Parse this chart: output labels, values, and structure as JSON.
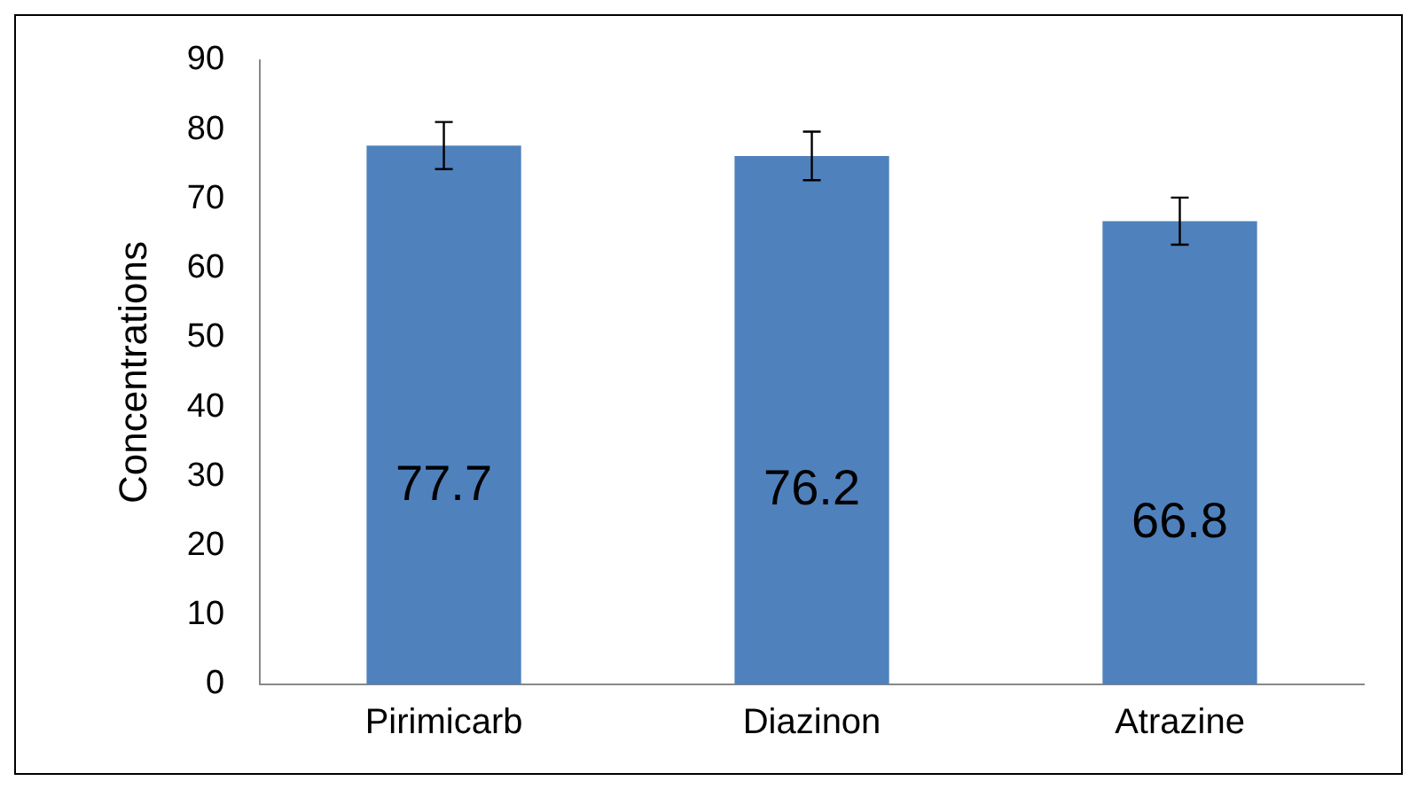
{
  "chart_data": {
    "type": "bar",
    "ylabel": "Concentrations",
    "categories": [
      "Pirimicarb",
      "Diazinon",
      "Atrazine"
    ],
    "values": [
      77.7,
      76.2,
      66.8
    ],
    "color": "#4f81bd",
    "errors": [
      3.4,
      3.5,
      3.4
    ],
    "ylim": [
      0,
      90
    ],
    "yticks": [
      0,
      10,
      20,
      30,
      40,
      50,
      60,
      70,
      80,
      90
    ],
    "grid": false,
    "legend": false,
    "data_labels": true
  }
}
